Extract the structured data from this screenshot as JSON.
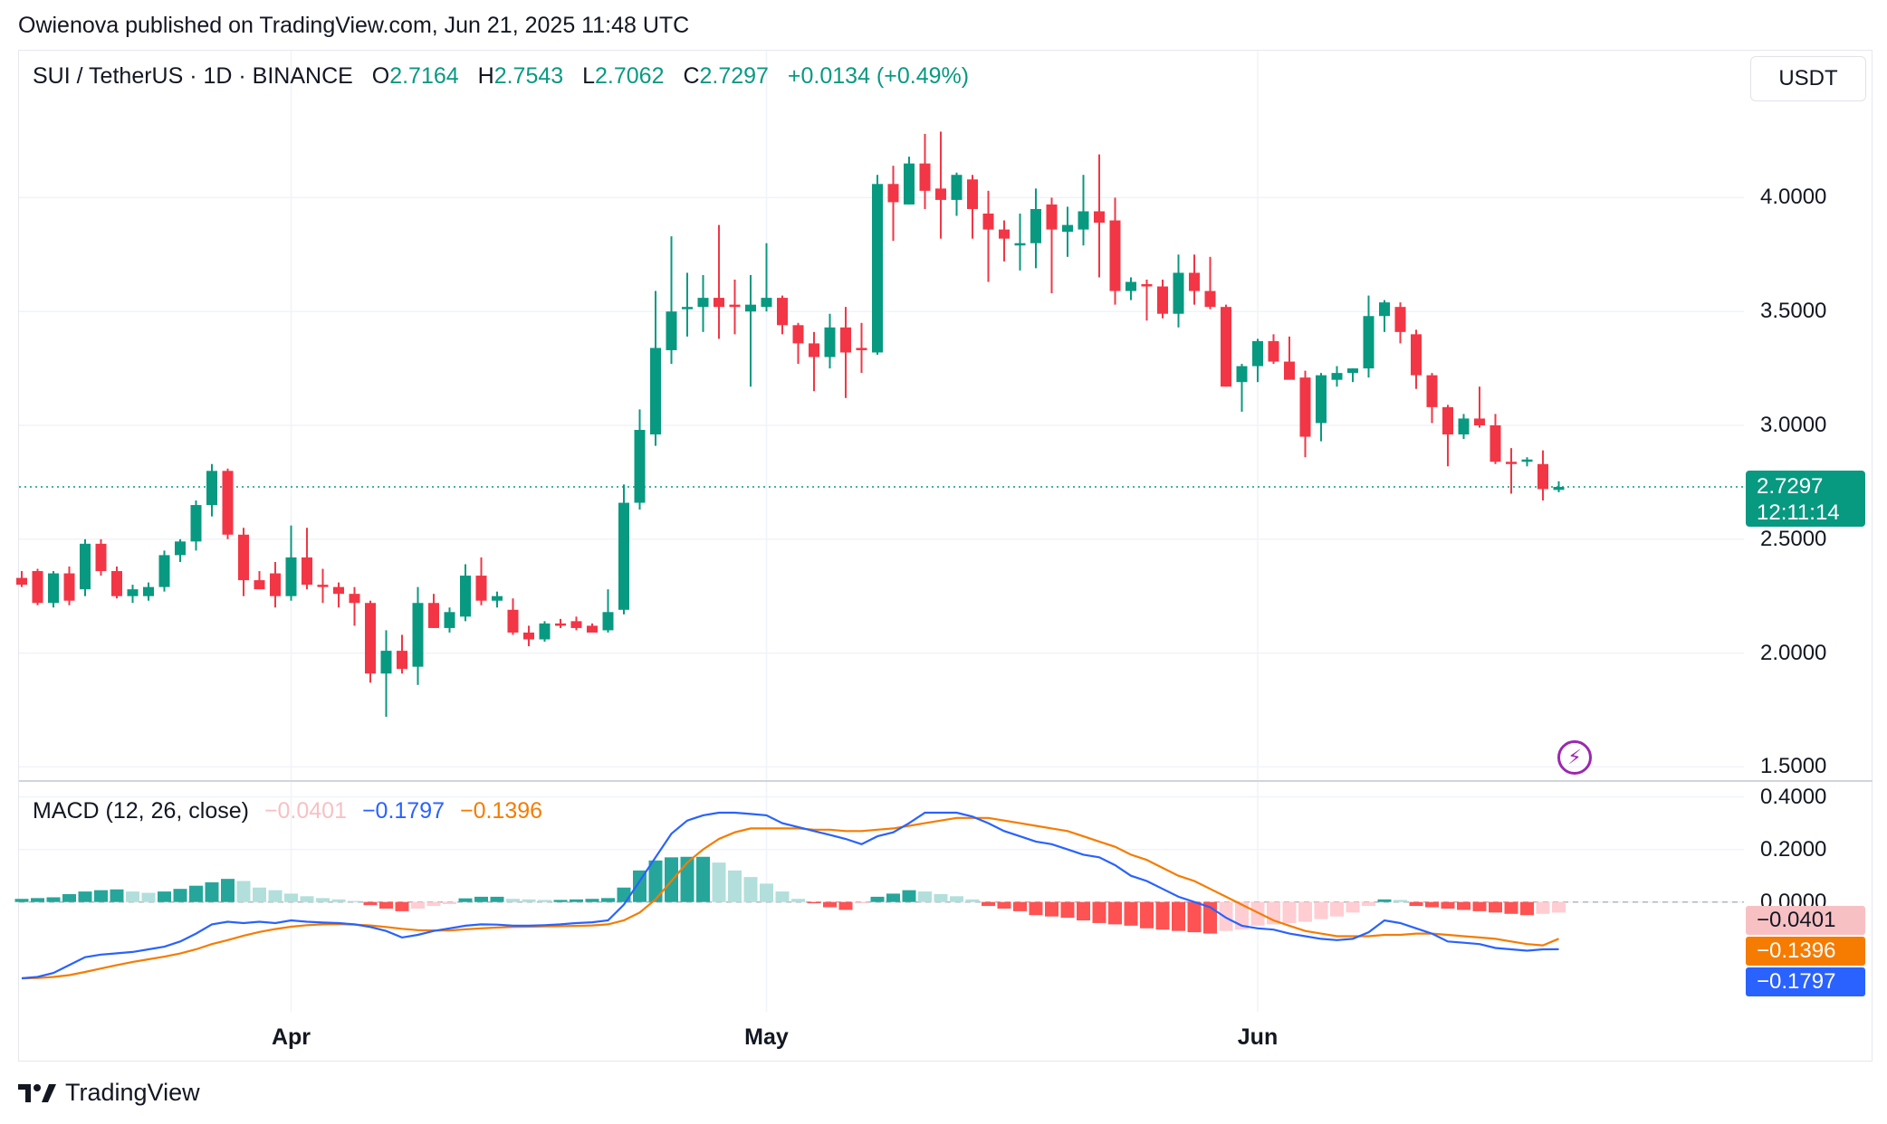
{
  "publish_line": "Owienova published on TradingView.com, Jun 21, 2025 11:48 UTC",
  "header": {
    "symbol": "SUI / TetherUS · 1D · BINANCE",
    "o_label": "O",
    "o": "2.7164",
    "h_label": "H",
    "h": "2.7543",
    "l_label": "L",
    "l": "2.7062",
    "c_label": "C",
    "c": "2.7297",
    "change": "+0.0134 (+0.49%)"
  },
  "currency": "USDT",
  "price_tag": {
    "price": "2.7297",
    "countdown": "12:11:14"
  },
  "macd": {
    "label": "MACD (12, 26, close)",
    "hist_value": "−0.0401",
    "macd_value": "−0.1797",
    "signal_value": "−0.1396"
  },
  "brand": "TradingView",
  "colors": {
    "up": "#089981",
    "down": "#f23645",
    "macd": "#2962ff",
    "signal": "#f57c00",
    "hist_up_light": "#b2dfdb",
    "hist_down_light": "#ffcdd2"
  },
  "chart_data": {
    "type": "candlestick",
    "title": "SUI / TetherUS · 1D · BINANCE",
    "y_range": [
      1.45,
      4.55
    ],
    "y_ticks": [
      "4.0000",
      "3.5000",
      "3.0000",
      "2.5000",
      "2.0000",
      "1.5000"
    ],
    "y_tick_values": [
      4.0,
      3.5,
      3.0,
      2.5,
      2.0,
      1.5
    ],
    "x_ticks": [
      {
        "label": "Apr",
        "index": 17
      },
      {
        "label": "May",
        "index": 47
      },
      {
        "label": "Jun",
        "index": 78
      }
    ],
    "last_price": 2.7297,
    "candles": [
      [
        2.33,
        2.36,
        2.29,
        2.3
      ],
      [
        2.36,
        2.37,
        2.21,
        2.22
      ],
      [
        2.22,
        2.36,
        2.2,
        2.35
      ],
      [
        2.35,
        2.38,
        2.21,
        2.23
      ],
      [
        2.28,
        2.5,
        2.25,
        2.48
      ],
      [
        2.48,
        2.5,
        2.34,
        2.36
      ],
      [
        2.36,
        2.38,
        2.24,
        2.25
      ],
      [
        2.25,
        2.3,
        2.22,
        2.28
      ],
      [
        2.25,
        2.31,
        2.23,
        2.29
      ],
      [
        2.29,
        2.45,
        2.27,
        2.43
      ],
      [
        2.43,
        2.5,
        2.4,
        2.49
      ],
      [
        2.49,
        2.67,
        2.45,
        2.65
      ],
      [
        2.65,
        2.83,
        2.6,
        2.8
      ],
      [
        2.8,
        2.81,
        2.5,
        2.52
      ],
      [
        2.52,
        2.55,
        2.25,
        2.32
      ],
      [
        2.32,
        2.36,
        2.28,
        2.28
      ],
      [
        2.35,
        2.4,
        2.2,
        2.25
      ],
      [
        2.25,
        2.56,
        2.23,
        2.42
      ],
      [
        2.42,
        2.55,
        2.28,
        2.3
      ],
      [
        2.3,
        2.37,
        2.22,
        2.29
      ],
      [
        2.29,
        2.31,
        2.2,
        2.26
      ],
      [
        2.26,
        2.29,
        2.12,
        2.22
      ],
      [
        2.22,
        2.23,
        1.87,
        1.91
      ],
      [
        1.91,
        2.1,
        1.72,
        2.01
      ],
      [
        2.01,
        2.08,
        1.91,
        1.93
      ],
      [
        1.94,
        2.29,
        1.86,
        2.22
      ],
      [
        2.22,
        2.26,
        2.11,
        2.11
      ],
      [
        2.11,
        2.2,
        2.09,
        2.18
      ],
      [
        2.16,
        2.39,
        2.14,
        2.34
      ],
      [
        2.34,
        2.42,
        2.21,
        2.23
      ],
      [
        2.23,
        2.27,
        2.2,
        2.25
      ],
      [
        2.19,
        2.24,
        2.08,
        2.09
      ],
      [
        2.09,
        2.12,
        2.03,
        2.06
      ],
      [
        2.06,
        2.14,
        2.05,
        2.13
      ],
      [
        2.13,
        2.15,
        2.11,
        2.12
      ],
      [
        2.14,
        2.16,
        2.1,
        2.11
      ],
      [
        2.12,
        2.13,
        2.09,
        2.09
      ],
      [
        2.1,
        2.28,
        2.09,
        2.18
      ],
      [
        2.19,
        2.74,
        2.17,
        2.66
      ],
      [
        2.66,
        3.07,
        2.63,
        2.98
      ],
      [
        2.96,
        3.59,
        2.91,
        3.34
      ],
      [
        3.33,
        3.83,
        3.27,
        3.5
      ],
      [
        3.51,
        3.67,
        3.39,
        3.52
      ],
      [
        3.52,
        3.66,
        3.41,
        3.56
      ],
      [
        3.56,
        3.88,
        3.38,
        3.52
      ],
      [
        3.53,
        3.64,
        3.4,
        3.52
      ],
      [
        3.5,
        3.66,
        3.17,
        3.53
      ],
      [
        3.52,
        3.8,
        3.5,
        3.56
      ],
      [
        3.56,
        3.57,
        3.4,
        3.44
      ],
      [
        3.44,
        3.45,
        3.27,
        3.36
      ],
      [
        3.36,
        3.41,
        3.15,
        3.3
      ],
      [
        3.3,
        3.49,
        3.25,
        3.43
      ],
      [
        3.43,
        3.52,
        3.12,
        3.32
      ],
      [
        3.34,
        3.45,
        3.23,
        3.33
      ],
      [
        3.32,
        4.1,
        3.31,
        4.06
      ],
      [
        4.06,
        4.14,
        3.81,
        3.98
      ],
      [
        3.97,
        4.18,
        3.97,
        4.15
      ],
      [
        4.15,
        4.28,
        3.95,
        4.03
      ],
      [
        4.04,
        4.29,
        3.82,
        3.99
      ],
      [
        3.99,
        4.11,
        3.92,
        4.1
      ],
      [
        4.08,
        4.1,
        3.82,
        3.95
      ],
      [
        3.93,
        4.03,
        3.63,
        3.86
      ],
      [
        3.86,
        3.9,
        3.72,
        3.82
      ],
      [
        3.79,
        3.93,
        3.68,
        3.8
      ],
      [
        3.8,
        4.04,
        3.69,
        3.95
      ],
      [
        3.97,
        4.0,
        3.58,
        3.86
      ],
      [
        3.85,
        3.96,
        3.74,
        3.88
      ],
      [
        3.86,
        4.1,
        3.79,
        3.94
      ],
      [
        3.94,
        4.19,
        3.65,
        3.89
      ],
      [
        3.9,
        4.0,
        3.53,
        3.59
      ],
      [
        3.59,
        3.65,
        3.55,
        3.63
      ],
      [
        3.62,
        3.64,
        3.46,
        3.61
      ],
      [
        3.61,
        3.64,
        3.47,
        3.49
      ],
      [
        3.49,
        3.75,
        3.43,
        3.67
      ],
      [
        3.67,
        3.75,
        3.53,
        3.59
      ],
      [
        3.59,
        3.74,
        3.51,
        3.52
      ],
      [
        3.52,
        3.53,
        3.17,
        3.17
      ],
      [
        3.19,
        3.27,
        3.06,
        3.26
      ],
      [
        3.26,
        3.38,
        3.19,
        3.37
      ],
      [
        3.37,
        3.4,
        3.27,
        3.28
      ],
      [
        3.28,
        3.39,
        3.21,
        3.2
      ],
      [
        3.21,
        3.24,
        2.86,
        2.95
      ],
      [
        3.01,
        3.23,
        2.93,
        3.22
      ],
      [
        3.2,
        3.26,
        3.17,
        3.23
      ],
      [
        3.23,
        3.25,
        3.19,
        3.25
      ],
      [
        3.25,
        3.57,
        3.21,
        3.48
      ],
      [
        3.48,
        3.55,
        3.41,
        3.54
      ],
      [
        3.52,
        3.54,
        3.36,
        3.41
      ],
      [
        3.4,
        3.42,
        3.16,
        3.22
      ],
      [
        3.22,
        3.23,
        3.01,
        3.08
      ],
      [
        3.08,
        3.09,
        2.82,
        2.96
      ],
      [
        2.96,
        3.05,
        2.94,
        3.03
      ],
      [
        3.03,
        3.17,
        2.99,
        3.0
      ],
      [
        3.0,
        3.05,
        2.83,
        2.84
      ],
      [
        2.84,
        2.9,
        2.7,
        2.83
      ],
      [
        2.84,
        2.86,
        2.82,
        2.85
      ],
      [
        2.83,
        2.89,
        2.67,
        2.72
      ],
      [
        2.7164,
        2.7543,
        2.7062,
        2.7297
      ]
    ],
    "macd_range": [
      -0.39,
      0.45
    ],
    "macd_ticks": [
      "0.4000",
      "0.2000",
      "0.0000"
    ],
    "macd_tick_values": [
      0.4,
      0.2,
      0.0
    ],
    "macd_series": {
      "macd": [
        -0.29,
        -0.285,
        -0.27,
        -0.24,
        -0.21,
        -0.2,
        -0.195,
        -0.19,
        -0.18,
        -0.17,
        -0.15,
        -0.12,
        -0.085,
        -0.075,
        -0.08,
        -0.075,
        -0.08,
        -0.07,
        -0.075,
        -0.078,
        -0.08,
        -0.085,
        -0.095,
        -0.11,
        -0.135,
        -0.125,
        -0.11,
        -0.1,
        -0.09,
        -0.085,
        -0.086,
        -0.09,
        -0.09,
        -0.088,
        -0.085,
        -0.08,
        -0.077,
        -0.07,
        -0.01,
        0.08,
        0.17,
        0.26,
        0.31,
        0.33,
        0.34,
        0.34,
        0.335,
        0.33,
        0.3,
        0.285,
        0.27,
        0.255,
        0.24,
        0.22,
        0.25,
        0.265,
        0.3,
        0.34,
        0.34,
        0.34,
        0.325,
        0.3,
        0.27,
        0.25,
        0.23,
        0.22,
        0.2,
        0.18,
        0.17,
        0.14,
        0.1,
        0.08,
        0.05,
        0.02,
        0.0,
        -0.02,
        -0.06,
        -0.09,
        -0.1,
        -0.105,
        -0.12,
        -0.13,
        -0.14,
        -0.145,
        -0.14,
        -0.115,
        -0.07,
        -0.08,
        -0.1,
        -0.12,
        -0.15,
        -0.155,
        -0.16,
        -0.175,
        -0.18,
        -0.185,
        -0.18,
        -0.1797
      ],
      "signal": [
        -0.29,
        -0.289,
        -0.285,
        -0.278,
        -0.266,
        -0.253,
        -0.24,
        -0.228,
        -0.218,
        -0.208,
        -0.196,
        -0.18,
        -0.16,
        -0.145,
        -0.128,
        -0.114,
        -0.103,
        -0.094,
        -0.088,
        -0.085,
        -0.084,
        -0.086,
        -0.089,
        -0.095,
        -0.102,
        -0.107,
        -0.108,
        -0.108,
        -0.104,
        -0.1,
        -0.097,
        -0.095,
        -0.094,
        -0.093,
        -0.092,
        -0.091,
        -0.089,
        -0.085,
        -0.07,
        -0.04,
        0.01,
        0.08,
        0.15,
        0.2,
        0.24,
        0.265,
        0.28,
        0.28,
        0.28,
        0.28,
        0.275,
        0.275,
        0.27,
        0.27,
        0.275,
        0.28,
        0.29,
        0.3,
        0.31,
        0.32,
        0.32,
        0.32,
        0.31,
        0.3,
        0.29,
        0.28,
        0.27,
        0.25,
        0.23,
        0.21,
        0.18,
        0.16,
        0.13,
        0.1,
        0.08,
        0.05,
        0.02,
        -0.01,
        -0.04,
        -0.07,
        -0.09,
        -0.11,
        -0.12,
        -0.13,
        -0.13,
        -0.13,
        -0.125,
        -0.125,
        -0.12,
        -0.12,
        -0.125,
        -0.13,
        -0.135,
        -0.14,
        -0.15,
        -0.16,
        -0.165,
        -0.1396
      ],
      "histogram": [
        0.012,
        0.015,
        0.018,
        0.03,
        0.04,
        0.045,
        0.048,
        0.04,
        0.035,
        0.04,
        0.05,
        0.062,
        0.075,
        0.088,
        0.08,
        0.055,
        0.045,
        0.032,
        0.022,
        0.015,
        0.01,
        0.004,
        -0.012,
        -0.025,
        -0.035,
        -0.025,
        -0.015,
        -0.008,
        0.014,
        0.02,
        0.02,
        0.012,
        0.01,
        0.008,
        0.008,
        0.01,
        0.012,
        0.015,
        0.055,
        0.12,
        0.158,
        0.17,
        0.172,
        0.172,
        0.15,
        0.12,
        0.095,
        0.07,
        0.04,
        0.012,
        -0.005,
        -0.02,
        -0.03,
        -0.005,
        0.02,
        0.032,
        0.045,
        0.04,
        0.03,
        0.022,
        0.01,
        -0.015,
        -0.025,
        -0.035,
        -0.05,
        -0.055,
        -0.06,
        -0.07,
        -0.08,
        -0.085,
        -0.09,
        -0.1,
        -0.105,
        -0.11,
        -0.115,
        -0.12,
        -0.11,
        -0.105,
        -0.09,
        -0.085,
        -0.08,
        -0.075,
        -0.065,
        -0.055,
        -0.04,
        -0.015,
        0.01,
        0.008,
        -0.015,
        -0.02,
        -0.025,
        -0.03,
        -0.035,
        -0.04,
        -0.045,
        -0.05,
        -0.045,
        -0.0401
      ]
    }
  }
}
